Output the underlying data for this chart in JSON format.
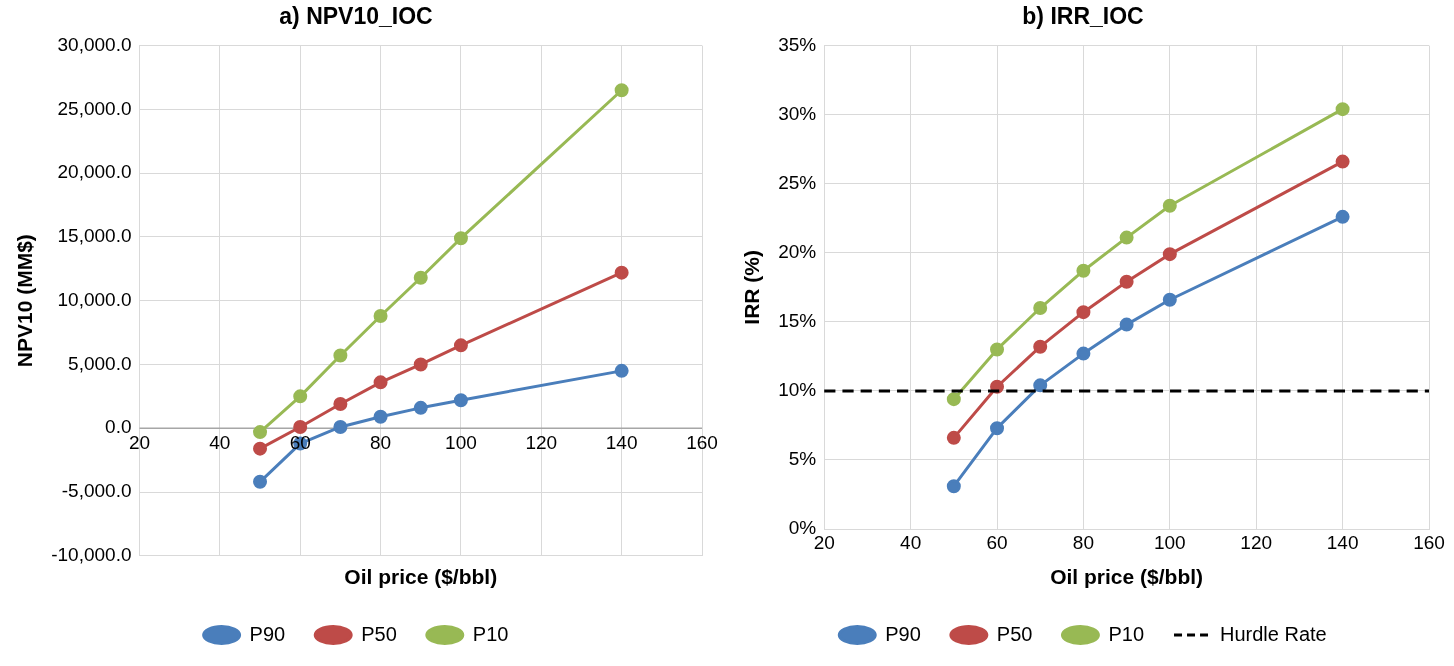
{
  "chart_data": [
    {
      "type": "line",
      "title": "a) NPV10_IOC",
      "xlabel": "Oil price ($/bbl)",
      "ylabel": "NPV10 (MM$)",
      "x": [
        50,
        60,
        70,
        80,
        90,
        100,
        140
      ],
      "series": [
        {
          "name": "P90",
          "color": "#4a7ebb",
          "values": [
            -4200,
            -1200,
            100,
            900,
            1600,
            2200,
            4500
          ]
        },
        {
          "name": "P50",
          "color": "#be4b48",
          "values": [
            -1600,
            100,
            1900,
            3600,
            5000,
            6500,
            12200
          ]
        },
        {
          "name": "P10",
          "color": "#98b954",
          "values": [
            -300,
            2500,
            5700,
            8800,
            11800,
            14900,
            26500
          ]
        }
      ],
      "xlim": [
        20,
        160
      ],
      "xticks": [
        20,
        40,
        60,
        80,
        100,
        120,
        140,
        160
      ],
      "ylim": [
        -10000,
        30000
      ],
      "yticks": [
        {
          "value": -10000,
          "label": "-10,000.0"
        },
        {
          "value": -5000,
          "label": "-5,000.0"
        },
        {
          "value": 0,
          "label": "0.0"
        },
        {
          "value": 5000,
          "label": "5,000.0"
        },
        {
          "value": 10000,
          "label": "10,000.0"
        },
        {
          "value": 15000,
          "label": "15,000.0"
        },
        {
          "value": 20000,
          "label": "20,000.0"
        },
        {
          "value": 25000,
          "label": "25,000.0"
        },
        {
          "value": 30000,
          "label": "30,000.0"
        }
      ],
      "grid": true,
      "legend": "bottom",
      "marker": "circle",
      "line_style": "solid"
    },
    {
      "type": "line",
      "title": "b) IRR_IOC",
      "xlabel": "Oil price ($/bbl)",
      "ylabel": "IRR (%)",
      "x": [
        50,
        60,
        70,
        80,
        90,
        100,
        140
      ],
      "series": [
        {
          "name": "P90",
          "color": "#4a7ebb",
          "values": [
            3.1,
            7.3,
            10.4,
            12.7,
            14.8,
            16.6,
            22.6
          ]
        },
        {
          "name": "P50",
          "color": "#be4b48",
          "values": [
            6.6,
            10.3,
            13.2,
            15.7,
            17.9,
            19.9,
            26.6
          ]
        },
        {
          "name": "P10",
          "color": "#98b954",
          "values": [
            9.4,
            13.0,
            16.0,
            18.7,
            21.1,
            23.4,
            30.4
          ]
        }
      ],
      "ref_lines": [
        {
          "axis": "y",
          "value": 10,
          "label": "Hurdle Rate",
          "color": "#000000",
          "line_style": "dashed"
        }
      ],
      "xlim": [
        20,
        160
      ],
      "xticks": [
        20,
        40,
        60,
        80,
        100,
        120,
        140,
        160
      ],
      "ylim": [
        0,
        35
      ],
      "yticks": [
        {
          "value": 0,
          "label": "0%"
        },
        {
          "value": 5,
          "label": "5%"
        },
        {
          "value": 10,
          "label": "10%"
        },
        {
          "value": 15,
          "label": "15%"
        },
        {
          "value": 20,
          "label": "20%"
        },
        {
          "value": 25,
          "label": "25%"
        },
        {
          "value": 30,
          "label": "30%"
        },
        {
          "value": 35,
          "label": "35%"
        }
      ],
      "grid": true,
      "legend": "bottom",
      "marker": "circle",
      "line_style": "solid"
    }
  ]
}
